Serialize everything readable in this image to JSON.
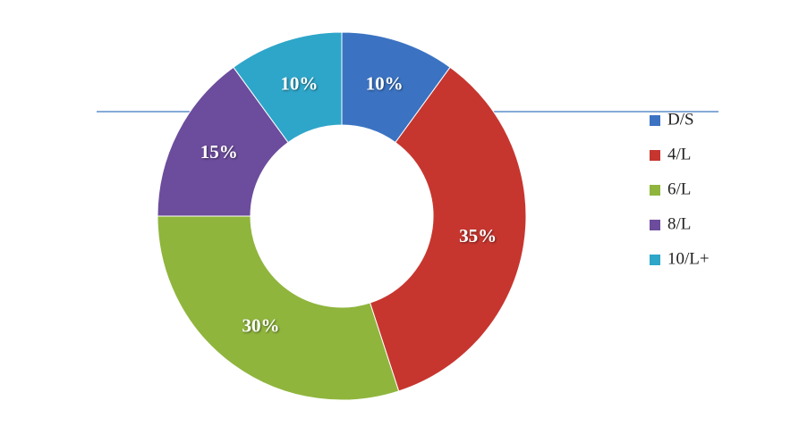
{
  "chart_data": {
    "type": "donut",
    "categories": [
      "D/S",
      "4/L",
      "6/L",
      "8/L",
      "10/L+"
    ],
    "values": [
      10,
      35,
      30,
      15,
      10
    ],
    "value_labels": [
      "10%",
      "35%",
      "30%",
      "15%",
      "10%"
    ],
    "colors": [
      "#3b73c2",
      "#c6362f",
      "#8fb53d",
      "#6c4c9c",
      "#2ea6c9"
    ],
    "legend": "right"
  }
}
